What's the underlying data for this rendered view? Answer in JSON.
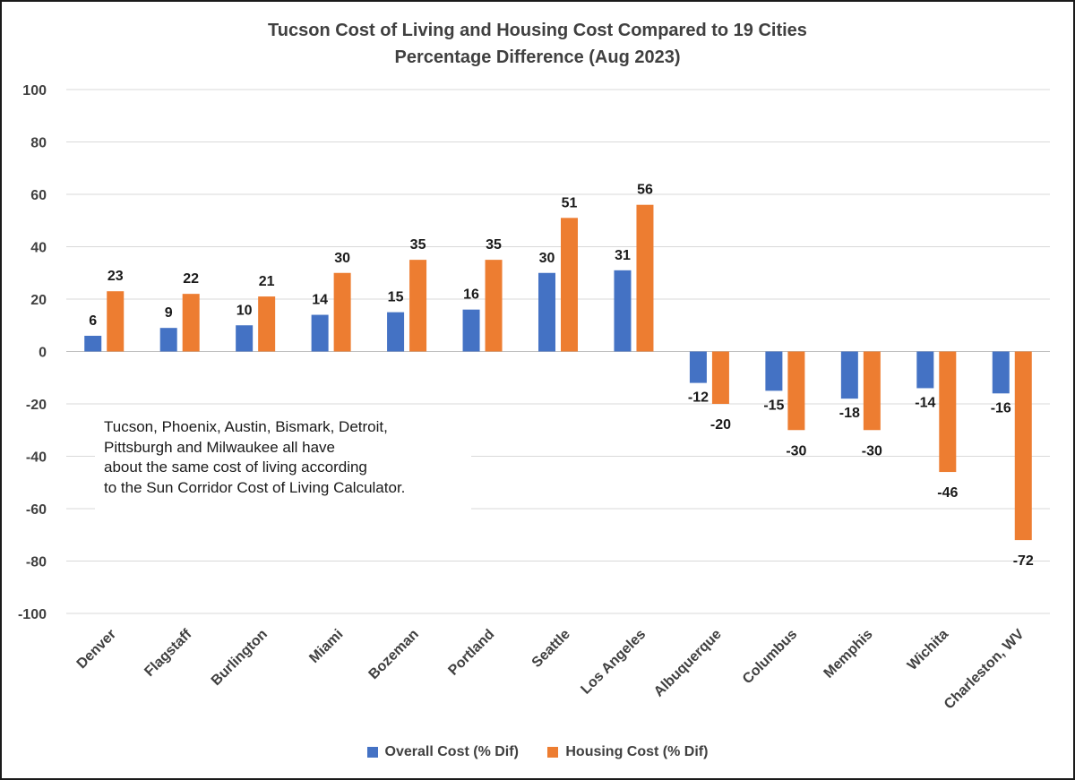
{
  "chart_data": {
    "type": "bar",
    "title": "Tucson Cost of Living and Housing Cost Compared to 19 Cities",
    "subtitle": "Percentage Difference (Aug 2023)",
    "categories": [
      "Denver",
      "Flagstaff",
      "Burlington",
      "Miami",
      "Bozeman",
      "Portland",
      "Seattle",
      "Los Angeles",
      "Albuquerque",
      "Columbus",
      "Memphis",
      "Wichita",
      "Charleston, WV"
    ],
    "series": [
      {
        "name": "Overall Cost (% Dif)",
        "color": "#4472C4",
        "values": [
          6,
          9,
          10,
          14,
          15,
          16,
          30,
          31,
          -12,
          -15,
          -18,
          -14,
          -16
        ]
      },
      {
        "name": "Housing Cost (% Dif)",
        "color": "#ED7D31",
        "values": [
          23,
          22,
          21,
          30,
          35,
          35,
          51,
          56,
          -20,
          -30,
          -30,
          -46,
          -72
        ]
      }
    ],
    "ylim": [
      -100,
      100
    ],
    "yticks": [
      100,
      80,
      60,
      40,
      20,
      0,
      -20,
      -40,
      -60,
      -80,
      -100
    ],
    "xlabel": "",
    "ylabel": "",
    "grid": true,
    "legend_position": "bottom",
    "data_labels": true,
    "annotation": [
      "Tucson, Phoenix, Austin, Bismark, Detroit,",
      "Pittsburgh and Milwaukee all have",
      "about the same cost of living according",
      "to the Sun Corridor Cost of Living Calculator."
    ]
  }
}
